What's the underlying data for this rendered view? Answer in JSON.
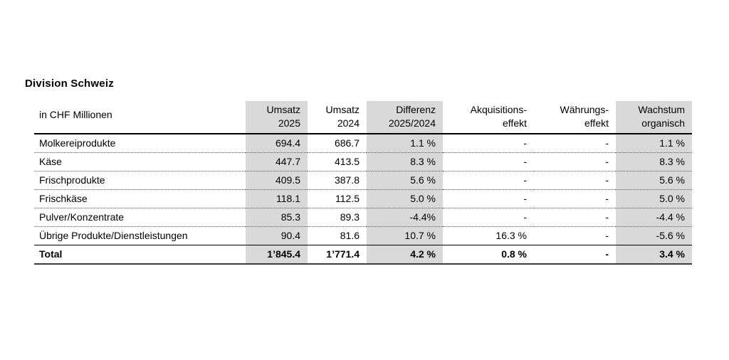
{
  "title": "Division Schweiz",
  "table": {
    "unit_label": "in CHF Millionen",
    "colors": {
      "shaded_column": "#d9d9d9",
      "text": "#000000",
      "header_rule": "#000000",
      "bottom_rule": "#3d3d3d"
    },
    "columns": [
      {
        "id": "umsatz-2025",
        "line1": "Umsatz",
        "line2": "2025",
        "shaded": true
      },
      {
        "id": "umsatz-2024",
        "line1": "Umsatz",
        "line2": "2024",
        "shaded": false
      },
      {
        "id": "differenz",
        "line1": "Differenz",
        "line2": "2025/2024",
        "shaded": true
      },
      {
        "id": "akquisitionseffekt",
        "line1": "Akquisitions-",
        "line2": "effekt",
        "shaded": false
      },
      {
        "id": "waehrungseffekt",
        "line1": "Währungs-",
        "line2": "effekt",
        "shaded": false
      },
      {
        "id": "wachstum-organisch",
        "line1": "Wachstum",
        "line2": "organisch",
        "shaded": true
      }
    ],
    "rows": [
      {
        "label": "Molkereiprodukte",
        "values": [
          "694.4",
          "686.7",
          "1.1 %",
          "-",
          "-",
          "1.1 %"
        ]
      },
      {
        "label": "Käse",
        "values": [
          "447.7",
          "413.5",
          "8.3 %",
          "-",
          "-",
          "8.3 %"
        ]
      },
      {
        "label": "Frischprodukte",
        "values": [
          "409.5",
          "387.8",
          "5.6 %",
          "-",
          "-",
          "5.6 %"
        ]
      },
      {
        "label": "Frischkäse",
        "values": [
          "118.1",
          "112.5",
          "5.0 %",
          "-",
          "-",
          "5.0 %"
        ]
      },
      {
        "label": "Pulver/Konzentrate",
        "values": [
          "85.3",
          "89.3",
          "-4.4%",
          "-",
          "-",
          "-4.4 %"
        ]
      },
      {
        "label": "Übrige Produkte/Dienstleistungen",
        "values": [
          "90.4",
          "81.6",
          "10.7 %",
          "16.3 %",
          "-",
          "-5.6 %"
        ]
      }
    ],
    "total_row": {
      "label": "Total",
      "values": [
        "1’845.4",
        "1’771.4",
        "4.2 %",
        "0.8 %",
        "-",
        "3.4 %"
      ]
    }
  }
}
